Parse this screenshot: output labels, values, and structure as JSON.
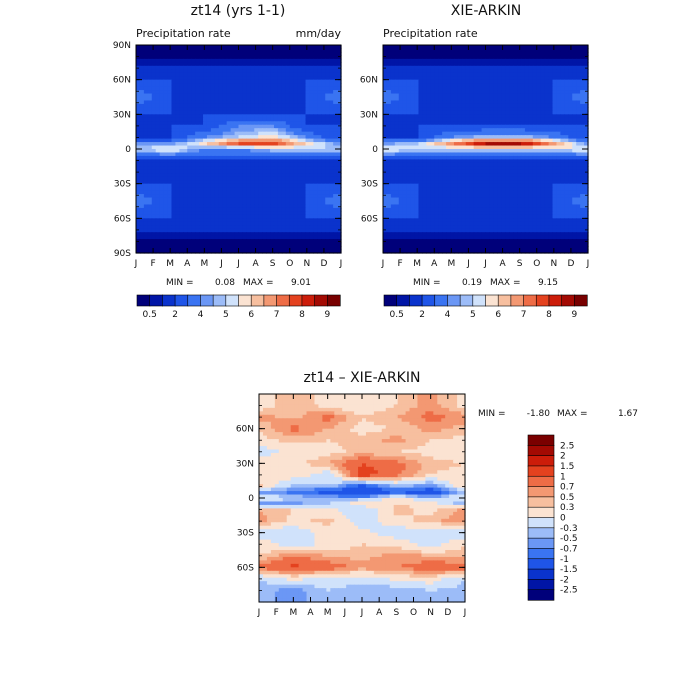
{
  "charts": [
    {
      "title": "zt14 (yrs 1-1)",
      "subtitle_left": "Precipitation rate",
      "subtitle_right": "mm/day",
      "stats": {
        "min_label": "MIN =",
        "min": "0.08",
        "max_label": "MAX =",
        "max": "9.01"
      }
    },
    {
      "title": "XIE-ARKIN",
      "subtitle_left": "Precipitation rate",
      "subtitle_right": "",
      "stats": {
        "min_label": "MIN =",
        "min": "0.19",
        "max_label": "MAX =",
        "max": "9.15"
      }
    },
    {
      "title": "zt14 – XIE-ARKIN",
      "subtitle_left": "",
      "subtitle_right": "",
      "stats": {
        "min_label": "MIN =",
        "min": "-1.80",
        "max_label": "MAX =",
        "max": "1.67"
      }
    }
  ],
  "chart_data": [
    {
      "type": "heatmap",
      "title": "zt14 (yrs 1-1)",
      "subtitle": "Precipitation rate",
      "units": "mm/day",
      "x_ticks": [
        "J",
        "F",
        "M",
        "A",
        "M",
        "J",
        "J",
        "A",
        "S",
        "O",
        "N",
        "D",
        "J"
      ],
      "y_ticks": [
        "90N",
        "60N",
        "30N",
        "0",
        "30S",
        "60S",
        "90S"
      ],
      "colorbar_labels": [
        "0.5",
        "2",
        "4",
        "5",
        "6",
        "7",
        "8",
        "9"
      ],
      "colorbar_colors": [
        "#00007a",
        "#0015a6",
        "#0a33cc",
        "#1f55e8",
        "#3a74f2",
        "#6b97f5",
        "#9cbcf8",
        "#d0e2fb",
        "#fbe3d2",
        "#f7bf9f",
        "#f39872",
        "#ee6c46",
        "#e4421f",
        "#cc1d0a",
        "#a30a03",
        "#780000"
      ],
      "stats": {
        "min": 0.08,
        "max": 9.01
      },
      "grid_lat": [
        80,
        60,
        45,
        30,
        20,
        10,
        5,
        0,
        -10,
        -20,
        -30,
        -45,
        -60,
        -80
      ],
      "grid_month": [
        1,
        3,
        5,
        7,
        9,
        11,
        13
      ],
      "grid_values": [
        [
          0.4,
          0.4,
          0.4,
          0.4,
          0.4,
          0.4,
          0.4
        ],
        [
          2,
          2,
          2,
          2,
          2,
          2,
          2
        ],
        [
          4,
          2,
          2,
          2,
          2,
          2,
          4
        ],
        [
          2,
          2,
          2,
          2,
          2,
          2,
          2
        ],
        [
          2,
          2,
          2,
          4,
          4,
          2,
          2
        ],
        [
          2,
          2,
          4,
          5,
          6,
          4,
          2
        ],
        [
          4,
          4,
          6,
          8,
          8,
          6,
          4
        ],
        [
          5,
          6,
          4,
          4,
          5,
          5,
          5
        ],
        [
          2,
          2,
          2,
          2,
          2,
          2,
          2
        ],
        [
          2,
          2,
          2,
          2,
          2,
          2,
          2
        ],
        [
          2,
          2,
          2,
          2,
          2,
          2,
          2
        ],
        [
          4,
          2,
          2,
          2,
          2,
          2,
          4
        ],
        [
          2,
          2,
          2,
          2,
          2,
          2,
          2
        ],
        [
          0.4,
          0.4,
          0.4,
          0.4,
          0.4,
          0.4,
          0.4
        ]
      ]
    },
    {
      "type": "heatmap",
      "title": "XIE-ARKIN",
      "subtitle": "Precipitation rate",
      "x_ticks": [
        "J",
        "F",
        "M",
        "A",
        "M",
        "J",
        "J",
        "A",
        "S",
        "O",
        "N",
        "D",
        "J"
      ],
      "y_ticks": [
        "60N",
        "30N",
        "0",
        "30S",
        "60S"
      ],
      "colorbar_labels": [
        "0.5",
        "2",
        "4",
        "5",
        "6",
        "7",
        "8",
        "9"
      ],
      "colorbar_colors": [
        "#00007a",
        "#0015a6",
        "#0a33cc",
        "#1f55e8",
        "#3a74f2",
        "#6b97f5",
        "#9cbcf8",
        "#d0e2fb",
        "#fbe3d2",
        "#f7bf9f",
        "#f39872",
        "#ee6c46",
        "#e4421f",
        "#cc1d0a",
        "#a30a03",
        "#780000"
      ],
      "stats": {
        "min": 0.19,
        "max": 9.15
      },
      "grid_lat": [
        80,
        60,
        45,
        30,
        20,
        10,
        5,
        0,
        -10,
        -20,
        -30,
        -45,
        -60,
        -80
      ],
      "grid_month": [
        1,
        3,
        5,
        7,
        9,
        11,
        13
      ],
      "grid_values": [
        [
          0.4,
          0.4,
          0.4,
          0.4,
          0.4,
          0.4,
          0.4
        ],
        [
          2,
          2,
          2,
          2,
          2,
          2,
          2
        ],
        [
          4,
          2,
          2,
          2,
          2,
          2,
          4
        ],
        [
          2,
          2,
          2,
          2,
          2,
          2,
          2
        ],
        [
          2,
          2,
          2,
          2,
          2,
          2,
          2
        ],
        [
          2,
          2,
          4,
          5,
          5,
          4,
          2
        ],
        [
          4,
          5,
          7,
          9,
          9,
          7,
          4
        ],
        [
          6,
          5,
          5,
          5,
          5,
          5,
          6
        ],
        [
          2,
          2,
          2,
          2,
          2,
          2,
          2
        ],
        [
          2,
          2,
          2,
          2,
          2,
          2,
          2
        ],
        [
          2,
          2,
          2,
          2,
          2,
          2,
          2
        ],
        [
          4,
          2,
          2,
          2,
          2,
          2,
          4
        ],
        [
          2,
          2,
          2,
          2,
          2,
          2,
          2
        ],
        [
          0.4,
          0.4,
          0.4,
          0.4,
          0.4,
          0.4,
          0.4
        ]
      ]
    },
    {
      "type": "heatmap",
      "title": "zt14 – XIE-ARKIN",
      "x_ticks": [
        "J",
        "F",
        "M",
        "A",
        "M",
        "J",
        "J",
        "A",
        "S",
        "O",
        "N",
        "D",
        "J"
      ],
      "y_ticks": [
        "60N",
        "30N",
        "0",
        "30S",
        "60S"
      ],
      "colorbar_labels": [
        "2.5",
        "2",
        "1.5",
        "1",
        "0.7",
        "0.5",
        "0.3",
        "0",
        "-0.3",
        "-0.5",
        "-0.7",
        "-1",
        "-1.5",
        "-2",
        "-2.5"
      ],
      "colorbar_colors": [
        "#7a0000",
        "#a30a03",
        "#cc1d0a",
        "#e4421f",
        "#ee6c46",
        "#f39872",
        "#f7bf9f",
        "#fbe3d2",
        "#d0e2fb",
        "#9cbcf8",
        "#6b97f5",
        "#3a74f2",
        "#1f55e8",
        "#0a33cc",
        "#0015a6",
        "#00007a"
      ],
      "stats": {
        "min": -1.8,
        "max": 1.67
      },
      "grid_lat": [
        80,
        70,
        60,
        50,
        40,
        30,
        20,
        10,
        5,
        0,
        -5,
        -10,
        -20,
        -30,
        -40,
        -50,
        -60,
        -70,
        -80
      ],
      "grid_month": [
        1,
        3,
        5,
        7,
        9,
        11,
        13
      ],
      "grid_values": [
        [
          0.1,
          0.5,
          0.2,
          0.1,
          0.3,
          0.6,
          0.2
        ],
        [
          0.6,
          0.4,
          0.8,
          0.3,
          0.5,
          0.8,
          0.6
        ],
        [
          0.3,
          0.8,
          0.5,
          0.2,
          0.3,
          0.6,
          0.4
        ],
        [
          0.2,
          0.4,
          0.3,
          0.4,
          0.6,
          0.3,
          0.2
        ],
        [
          -0.2,
          0.1,
          0.2,
          0.4,
          0.3,
          0.2,
          0.1
        ],
        [
          0.3,
          0.2,
          0.5,
          1.0,
          0.8,
          0.4,
          0.3
        ],
        [
          0.1,
          0.2,
          -0.2,
          1.2,
          0.8,
          0.3,
          0.2
        ],
        [
          0.4,
          -0.4,
          -0.3,
          -1.2,
          -0.4,
          -0.7,
          0.3
        ],
        [
          -0.6,
          -0.8,
          -1.2,
          -1.6,
          -1.0,
          -1.4,
          -0.3
        ],
        [
          0.1,
          -0.3,
          -0.4,
          -0.5,
          0.2,
          -0.4,
          0.1
        ],
        [
          -0.6,
          -0.6,
          -0.3,
          0.2,
          0.3,
          0.2,
          -0.6
        ],
        [
          0.5,
          0.3,
          0.1,
          -0.3,
          0.4,
          0.2,
          0.6
        ],
        [
          0.6,
          0.2,
          0.4,
          -0.2,
          0.2,
          0.4,
          0.7
        ],
        [
          -0.2,
          -0.3,
          0.2,
          0.1,
          -0.2,
          -0.2,
          -0.3
        ],
        [
          0.2,
          -0.2,
          0.1,
          0.3,
          0.2,
          -0.2,
          0.3
        ],
        [
          0.3,
          0.7,
          0.5,
          0.4,
          0.6,
          0.5,
          0.4
        ],
        [
          0.8,
          1.1,
          0.9,
          0.6,
          0.7,
          0.9,
          0.9
        ],
        [
          -0.3,
          0.1,
          -0.2,
          -0.2,
          0.1,
          0.2,
          -0.3
        ],
        [
          -0.4,
          -0.6,
          -0.3,
          -0.4,
          -0.5,
          -0.3,
          -0.4
        ]
      ]
    }
  ]
}
